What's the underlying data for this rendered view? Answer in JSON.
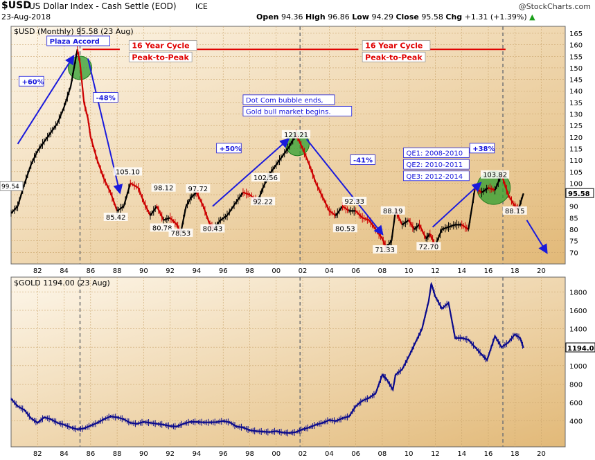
{
  "header": {
    "symbol": "$USD",
    "name": "US Dollar Index - Cash Settle (EOD)",
    "exchange": "ICE",
    "date": "23-Aug-2018",
    "brand": "@StockCharts.com",
    "open_label": "Open",
    "open": "94.36",
    "high_label": "High",
    "high": "96.86",
    "low_label": "Low",
    "low": "94.29",
    "close_label": "Close",
    "close": "95.58",
    "chg_label": "Chg",
    "chg": "+1.31 (+1.39%)"
  },
  "chart_data": [
    {
      "type": "line",
      "panel_title": "$USD (Monthly) 95.58 (23 Aug)",
      "price_tag": "95.58",
      "start_tag": "99.54",
      "ylim": [
        65,
        168
      ],
      "yticks": [
        70,
        75,
        80,
        85,
        90,
        95,
        100,
        105,
        110,
        115,
        120,
        125,
        130,
        135,
        140,
        145,
        150,
        155,
        160,
        165
      ],
      "xlim": [
        1980.0,
        2021.8
      ],
      "x_ticks": [
        "82",
        "84",
        "86",
        "88",
        "90",
        "92",
        "94",
        "96",
        "98",
        "00",
        "02",
        "04",
        "06",
        "08",
        "10",
        "12",
        "14",
        "16",
        "18",
        "20"
      ],
      "x_tick_years": [
        1982,
        1984,
        1986,
        1988,
        1990,
        1992,
        1994,
        1996,
        1998,
        2000,
        2002,
        2004,
        2006,
        2008,
        2010,
        2012,
        2014,
        2016,
        2018,
        2020
      ],
      "series": [
        {
          "x": [
            1980.0,
            1980.5,
            1981.0,
            1981.5,
            1982.0,
            1982.5,
            1983.0,
            1983.5,
            1984.0,
            1984.5,
            1985.0,
            1985.2,
            1985.5,
            1985.8,
            1986.0,
            1986.5,
            1987.0,
            1987.5,
            1988.0,
            1988.5,
            1989.0,
            1989.6,
            1990.0,
            1990.5,
            1991.0,
            1991.5,
            1992.0,
            1992.5,
            1992.8,
            1993.2,
            1993.6,
            1994.0,
            1994.5,
            1995.0,
            1995.3,
            1995.8,
            1996.3,
            1997.0,
            1997.5,
            1998.0,
            1998.6,
            1999.0,
            1999.5,
            2000.0,
            2000.5,
            2001.0,
            2001.5,
            2002.0,
            2002.5,
            2003.0,
            2003.5,
            2004.0,
            2004.5,
            2005.0,
            2005.5,
            2006.0,
            2006.5,
            2007.0,
            2007.5,
            2008.0,
            2008.3,
            2008.7,
            2009.0,
            2009.5,
            2010.0,
            2010.4,
            2010.8,
            2011.3,
            2011.6,
            2012.0,
            2012.5,
            2013.0,
            2013.5,
            2014.0,
            2014.5,
            2015.0,
            2015.5,
            2016.0,
            2016.5,
            2017.0,
            2017.5,
            2018.0,
            2018.3,
            2018.65
          ],
          "values": [
            87,
            90,
            99.54,
            108,
            114,
            118,
            122,
            126,
            133,
            142,
            158,
            152,
            135,
            128,
            120,
            110,
            102,
            96,
            88,
            90,
            100,
            98,
            92,
            86,
            90,
            84,
            85,
            82,
            78.5,
            90,
            94,
            96,
            90,
            82,
            80.4,
            84,
            86,
            92,
            96,
            95,
            92,
            98,
            104,
            108,
            112,
            116,
            121.2,
            115,
            108,
            100,
            94,
            88,
            86,
            90,
            88,
            88,
            85,
            84,
            80,
            76,
            72,
            75,
            88.2,
            82,
            84,
            80,
            82,
            76,
            78,
            73,
            80,
            81,
            82,
            82,
            80,
            98,
            96,
            98,
            97,
            103.8,
            95,
            90,
            89,
            95.58
          ]
        }
      ],
      "annotations": [
        {
          "text": "Plaza Accord",
          "x": 1982.7,
          "y": 160.5,
          "box": "blue"
        },
        {
          "text": "+60%",
          "x": 1980.6,
          "y": 143,
          "box": "blue"
        },
        {
          "text": "-48%",
          "x": 1986.2,
          "y": 136,
          "box": "blue"
        },
        {
          "text": "+50%",
          "x": 1995.5,
          "y": 114,
          "box": "blue"
        },
        {
          "text": "-41%",
          "x": 2005.6,
          "y": 109,
          "box": "blue"
        },
        {
          "text": "+38%",
          "x": 2014.6,
          "y": 114,
          "box": "blue"
        },
        {
          "text": "Dot Com bubble ends,",
          "x": 1997.5,
          "y": 135,
          "box": "blue-top"
        },
        {
          "text": "Gold bull market begins.",
          "x": 1997.5,
          "y": 130,
          "box": "blue-bottom"
        },
        {
          "text": "QE1: 2008-2010",
          "x": 2009.6,
          "y": 112,
          "box": "qe"
        },
        {
          "text": "QE2: 2010-2011",
          "x": 2009.6,
          "y": 107,
          "box": "qe"
        },
        {
          "text": "QE3: 2012-2014",
          "x": 2009.6,
          "y": 102,
          "box": "qe"
        },
        {
          "text": "16 Year Cycle",
          "x": 1988.9,
          "y": 158.5,
          "box": "red-top"
        },
        {
          "text": "Peak-to-Peak",
          "x": 1988.9,
          "y": 153.5,
          "box": "red-bottom"
        },
        {
          "text": "16 Year Cycle",
          "x": 2006.5,
          "y": 158.5,
          "box": "red-top"
        },
        {
          "text": "Peak-to-Peak",
          "x": 2006.5,
          "y": 153.5,
          "box": "red-bottom"
        }
      ],
      "value_labels": [
        {
          "text": "105.10",
          "x": 1988.8,
          "y": 105.1
        },
        {
          "text": "85.42",
          "x": 1987.9,
          "y": 85.42
        },
        {
          "text": "98.12",
          "x": 1991.5,
          "y": 98.12
        },
        {
          "text": "97.72",
          "x": 1994.1,
          "y": 97.72
        },
        {
          "text": "80.78",
          "x": 1991.4,
          "y": 80.78
        },
        {
          "text": "78.53",
          "x": 1992.8,
          "y": 78.53
        },
        {
          "text": "80.43",
          "x": 1995.2,
          "y": 80.43
        },
        {
          "text": "102.56",
          "x": 1999.2,
          "y": 102.56
        },
        {
          "text": "92.22",
          "x": 1999.0,
          "y": 92.22
        },
        {
          "text": "121.21",
          "x": 2001.5,
          "y": 121.21
        },
        {
          "text": "92.33",
          "x": 2005.9,
          "y": 92.33
        },
        {
          "text": "80.53",
          "x": 2005.2,
          "y": 80.53
        },
        {
          "text": "88.19",
          "x": 2008.8,
          "y": 88.19
        },
        {
          "text": "71.33",
          "x": 2008.2,
          "y": 71.33
        },
        {
          "text": "72.70",
          "x": 2011.5,
          "y": 72.7
        },
        {
          "text": "103.82",
          "x": 2016.5,
          "y": 103.82
        },
        {
          "text": "88.15",
          "x": 2018.0,
          "y": 88.15
        }
      ],
      "cycle_line_y": 158,
      "cycle_line_segments": [
        [
          1985.4,
          1988.2
        ],
        [
          1992.7,
          2002.0
        ],
        [
          2002.0,
          2006.2
        ],
        [
          2010.6,
          2017.3
        ]
      ],
      "highlight_circles": [
        {
          "x": 1985.2,
          "y": 150
        },
        {
          "x": 2001.6,
          "y": 117
        },
        {
          "x": 2016.4,
          "y": 98
        }
      ],
      "vertical_lines_x": [
        1985.2,
        2001.8,
        2017.1
      ],
      "trend_arrows": [
        {
          "from": [
            1980.5,
            117
          ],
          "to": [
            1984.7,
            155
          ]
        },
        {
          "from": [
            1985.8,
            154
          ],
          "to": [
            1988.2,
            96
          ]
        },
        {
          "from": [
            1995.2,
            90
          ],
          "to": [
            2000.9,
            119
          ]
        },
        {
          "from": [
            2002.3,
            119
          ],
          "to": [
            2008.0,
            78
          ]
        },
        {
          "from": [
            2011.8,
            81
          ],
          "to": [
            2015.4,
            100
          ]
        },
        {
          "from": [
            2018.9,
            84
          ],
          "to": [
            2020.4,
            70
          ]
        }
      ],
      "colors": {
        "up": "#000000",
        "down": "#cc0000",
        "cycle": "#e00000",
        "annotation": "#1a1adc",
        "highlight": "#2e9e2e"
      }
    },
    {
      "type": "line",
      "panel_title": "$GOLD 1194.00 (23 Aug)",
      "price_tag": "1194.0",
      "ylim": [
        120,
        1960
      ],
      "yticks": [
        400,
        600,
        800,
        1000,
        1200,
        1400,
        1600,
        1800
      ],
      "xlim": [
        1980.0,
        2021.8
      ],
      "x_ticks": [
        "82",
        "84",
        "86",
        "88",
        "90",
        "92",
        "94",
        "96",
        "98",
        "00",
        "02",
        "04",
        "06",
        "08",
        "10",
        "12",
        "14",
        "16",
        "18",
        "20"
      ],
      "series": [
        {
          "x": [
            1980.0,
            1980.5,
            1981.0,
            1981.5,
            1982.0,
            1982.5,
            1983.0,
            1983.5,
            1984.0,
            1984.5,
            1985.0,
            1985.5,
            1986.0,
            1986.5,
            1987.0,
            1987.5,
            1988.0,
            1988.5,
            1989.0,
            1989.5,
            1990.0,
            1990.5,
            1991.0,
            1991.5,
            1992.0,
            1992.5,
            1993.0,
            1993.5,
            1994.0,
            1994.5,
            1995.0,
            1995.5,
            1996.0,
            1996.5,
            1997.0,
            1997.5,
            1998.0,
            1998.5,
            1999.0,
            1999.5,
            2000.0,
            2000.5,
            2001.0,
            2001.5,
            2002.0,
            2002.5,
            2003.0,
            2003.5,
            2004.0,
            2004.5,
            2005.0,
            2005.5,
            2006.0,
            2006.5,
            2007.0,
            2007.5,
            2008.0,
            2008.3,
            2008.8,
            2009.0,
            2009.5,
            2010.0,
            2010.5,
            2011.0,
            2011.5,
            2011.7,
            2012.0,
            2012.5,
            2013.0,
            2013.5,
            2014.0,
            2014.5,
            2015.0,
            2015.5,
            2015.9,
            2016.5,
            2017.0,
            2017.5,
            2018.0,
            2018.4,
            2018.65
          ],
          "values": [
            640,
            560,
            520,
            430,
            380,
            440,
            420,
            380,
            360,
            330,
            310,
            320,
            350,
            380,
            420,
            450,
            440,
            420,
            380,
            370,
            390,
            380,
            370,
            360,
            345,
            340,
            370,
            390,
            390,
            385,
            385,
            388,
            400,
            385,
            340,
            330,
            300,
            290,
            285,
            280,
            290,
            275,
            270,
            280,
            310,
            330,
            360,
            380,
            410,
            400,
            430,
            450,
            560,
            620,
            650,
            700,
            900,
            860,
            740,
            900,
            960,
            1100,
            1250,
            1400,
            1700,
            1890,
            1750,
            1620,
            1680,
            1300,
            1300,
            1280,
            1200,
            1120,
            1060,
            1320,
            1200,
            1250,
            1340,
            1300,
            1194
          ]
        }
      ],
      "vertical_lines_x": [
        1985.2,
        2001.8,
        2017.1
      ],
      "colors": {
        "line": "#0a0a8c"
      }
    }
  ]
}
